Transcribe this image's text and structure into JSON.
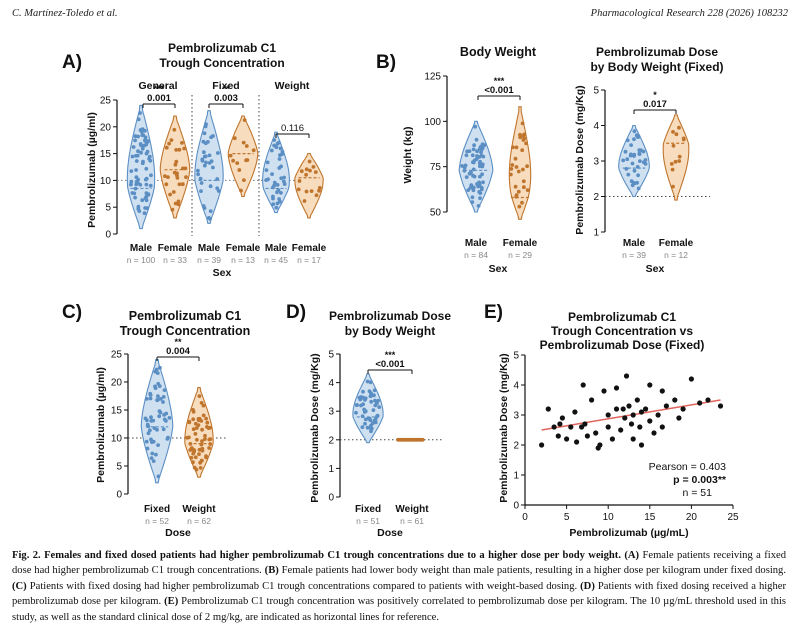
{
  "header": {
    "left": "C. Martínez-Toledo et al.",
    "right": "Pharmacological Research 228 (2026) 108232"
  },
  "colors": {
    "blue": "#5b8fc4",
    "blue_fill": "#cfe0f1",
    "orange": "#c0752d",
    "orange_fill": "#f7dcbd",
    "trend": "#e0645c"
  },
  "panels": {
    "A": {
      "letter": "A)",
      "title": [
        "Pembrolizumab C1",
        "Trough Concentration"
      ],
      "ylabel": "Pembrolizumab (µg/ml)",
      "xlabel": "Sex",
      "yticks": [
        "0",
        "5",
        "10",
        "15",
        "20",
        "25"
      ],
      "groups": [
        {
          "name": "General",
          "sig": "***",
          "p": "0.001",
          "cats": [
            "Male",
            "Female"
          ],
          "ns": [
            "n = 100",
            "n = 33"
          ]
        },
        {
          "name": "Fixed",
          "sig": "**",
          "p": "0.003",
          "cats": [
            "Male",
            "Female"
          ],
          "ns": [
            "n = 39",
            "n = 13"
          ]
        },
        {
          "name": "Weight",
          "sig": "",
          "p": "0.116",
          "cats": [
            "Male",
            "Female"
          ],
          "ns": [
            "n = 45",
            "n = 17"
          ]
        }
      ]
    },
    "B": {
      "letter": "B)",
      "left": {
        "title": "Body Weight",
        "ylabel": "Weight (kg)",
        "xlabel": "Sex",
        "yticks": [
          "50",
          "75",
          "100",
          "125"
        ],
        "sig": "***",
        "p": "<0.001",
        "cats": [
          "Male",
          "Female"
        ],
        "ns": [
          "n = 84",
          "n = 29"
        ]
      },
      "right": {
        "title": [
          "Pembrolizumab Dose",
          "by Body Weight (Fixed)"
        ],
        "ylabel": "Pembrolizumab Dose (mg/Kg)",
        "xlabel": "Sex",
        "yticks": [
          "1",
          "2",
          "3",
          "4",
          "5"
        ],
        "sig": "*",
        "p": "0.017",
        "cats": [
          "Male",
          "Female"
        ],
        "ns": [
          "n = 39",
          "n = 12"
        ]
      }
    },
    "C": {
      "letter": "C)",
      "title": [
        "Pembrolizumab C1",
        "Trough Concentration"
      ],
      "ylabel": "Pembrolizumab (µg/ml)",
      "xlabel": "Dose",
      "yticks": [
        "0",
        "5",
        "10",
        "15",
        "20",
        "25"
      ],
      "sig": "**",
      "p": "0.004",
      "cats": [
        "Fixed",
        "Weight"
      ],
      "ns": [
        "n = 52",
        "n = 62"
      ]
    },
    "D": {
      "letter": "D)",
      "title": [
        "Pembrolizumab Dose",
        "by Body Weight"
      ],
      "ylabel": "Pembrolizumab Dose (mg/Kg)",
      "xlabel": "Dose",
      "yticks": [
        "0",
        "1",
        "2",
        "3",
        "4",
        "5"
      ],
      "sig": "***",
      "p": "<0.001",
      "cats": [
        "Fixed",
        "Weight"
      ],
      "ns": [
        "n = 51",
        "n = 61"
      ]
    },
    "E": {
      "letter": "E)",
      "title": [
        "Pembrolizumab C1",
        "Trough Concentration vs",
        "Pembrolizumab Dose (Fixed)"
      ],
      "ylabel": "Pembrolizumab Dose (mg/Kg)",
      "xlabel": "Pembrolizumab (µg/mL)",
      "xticks": [
        "0",
        "5",
        "10",
        "15",
        "20",
        "25"
      ],
      "yticks": [
        "0",
        "1",
        "2",
        "3",
        "4",
        "5"
      ],
      "pearson": "Pearson = 0.403",
      "pval": "p = 0.003**",
      "n": "n = 51"
    }
  },
  "chart_data": [
    {
      "type": "violin",
      "panel": "A",
      "ylabel": "Pembrolizumab (µg/ml)",
      "xlabel": "Sex",
      "ylim": [
        0,
        25
      ],
      "categories": [
        "General Male",
        "General Female",
        "Fixed Male",
        "Fixed Female",
        "Weight Male",
        "Weight Female"
      ],
      "ranges": [
        [
          1,
          24
        ],
        [
          3,
          22
        ],
        [
          2,
          23
        ],
        [
          7,
          22
        ],
        [
          4,
          19
        ],
        [
          3,
          15
        ]
      ],
      "medians": [
        8.5,
        12,
        10,
        15,
        8.5,
        10.5
      ],
      "reference_line": 10
    },
    {
      "type": "violin",
      "panel": "B-left",
      "ylabel": "Weight (kg)",
      "xlabel": "Sex",
      "ylim": [
        40,
        130
      ],
      "categories": [
        "Male",
        "Female"
      ],
      "ranges": [
        [
          50,
          100
        ],
        [
          46,
          108
        ]
      ],
      "medians": [
        73,
        58
      ]
    },
    {
      "type": "violin",
      "panel": "B-right",
      "ylabel": "Pembrolizumab Dose (mg/Kg)",
      "xlabel": "Sex",
      "ylim": [
        1,
        5
      ],
      "categories": [
        "Male",
        "Female"
      ],
      "ranges": [
        [
          2,
          4
        ],
        [
          1.9,
          4.3
        ]
      ],
      "medians": [
        2.8,
        3.5
      ],
      "reference_line": 2
    },
    {
      "type": "violin",
      "panel": "C",
      "ylabel": "Pembrolizumab (µg/ml)",
      "xlabel": "Dose",
      "ylim": [
        0,
        25
      ],
      "categories": [
        "Fixed",
        "Weight"
      ],
      "ranges": [
        [
          2,
          24
        ],
        [
          3,
          19
        ]
      ],
      "medians": [
        12,
        9
      ],
      "reference_line": 10
    },
    {
      "type": "violin",
      "panel": "D",
      "ylabel": "Pembrolizumab Dose (mg/Kg)",
      "xlabel": "Dose",
      "ylim": [
        0,
        5
      ],
      "categories": [
        "Fixed",
        "Weight"
      ],
      "ranges": [
        [
          1.9,
          4.3
        ],
        [
          2,
          2
        ]
      ],
      "medians": [
        2.8,
        2
      ],
      "reference_line": 2
    },
    {
      "type": "scatter",
      "panel": "E",
      "xlabel": "Pembrolizumab (µg/mL)",
      "ylabel": "Pembrolizumab Dose (mg/Kg)",
      "xlim": [
        0,
        25
      ],
      "ylim": [
        0,
        5
      ],
      "x": [
        2,
        2.8,
        3.5,
        4,
        4.5,
        5,
        5.5,
        6,
        6.2,
        7,
        7.2,
        7.5,
        8,
        8.5,
        9,
        9.5,
        10,
        10,
        10.5,
        11,
        11.5,
        11.8,
        12,
        12.2,
        12.5,
        12.8,
        13,
        13,
        13.5,
        13.8,
        14,
        14,
        14.5,
        15,
        15,
        15.5,
        16,
        16.5,
        17,
        18,
        18.5,
        19,
        20,
        21,
        22,
        23.5,
        6.8,
        8.8,
        11,
        16.5,
        4.2
      ],
      "y": [
        2.0,
        3.2,
        2.6,
        2.3,
        2.9,
        2.2,
        2.6,
        3.1,
        2.1,
        4.0,
        2.7,
        2.3,
        3.5,
        2.4,
        2.0,
        3.8,
        2.6,
        3.0,
        2.2,
        3.9,
        2.5,
        3.2,
        2.9,
        4.3,
        3.3,
        2.7,
        3.0,
        2.2,
        3.5,
        2.6,
        3.1,
        2.0,
        3.2,
        2.8,
        4.0,
        2.4,
        3.0,
        2.6,
        3.3,
        3.5,
        2.9,
        3.2,
        4.2,
        3.4,
        3.5,
        3.3,
        2.6,
        1.9,
        3.2,
        3.8,
        2.7
      ],
      "trend": {
        "x": [
          2,
          23.5
        ],
        "y": [
          2.5,
          3.5
        ]
      },
      "annotations": [
        "Pearson = 0.403",
        "p = 0.003**",
        "n = 51"
      ]
    }
  ],
  "caption": {
    "label": "Fig. 2.",
    "title": "Females and fixed dosed patients had higher pembrolizumab C1 trough concentrations due to a higher dose per body weight.",
    "parts": [
      {
        "tag": "(A)",
        "text": " Female patients receiving a fixed dose had higher pembrolizumab C1 trough concentrations. "
      },
      {
        "tag": "(B)",
        "text": " Female patients had lower body weight than male patients, resulting in a higher dose per kilogram under fixed dosing. "
      },
      {
        "tag": "(C)",
        "text": " Patients with fixed dosing had higher pembrolizumab C1 trough concentrations compared to patients with weight-based dosing. "
      },
      {
        "tag": "(D)",
        "text": " Patients with fixed dosing received a higher pembrolizumab dose per kilogram. "
      },
      {
        "tag": "(E)",
        "text": " Pembrolizumab C1 trough concentration was positively correlated to pembrolizumab dose per kilogram. The 10 µg/mL threshold used in this study, as well as the standard clinical dose of 2 mg/kg, are indicated as horizontal lines for reference."
      }
    ]
  }
}
